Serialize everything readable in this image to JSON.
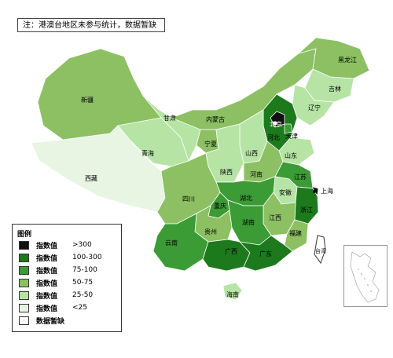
{
  "note": "注：港澳台地区未参与统计，数据暂缺",
  "legend": {
    "title": "图例",
    "items": [
      {
        "label": "指数值",
        "range": ">300",
        "color": "#111111"
      },
      {
        "label": "指数值",
        "range": "100-300",
        "color": "#1c7a1c"
      },
      {
        "label": "指数值",
        "range": "75-100",
        "color": "#3b9b35"
      },
      {
        "label": "指数值",
        "range": "50-75",
        "color": "#8cc063"
      },
      {
        "label": "指数值",
        "range": "25-50",
        "color": "#b5e4a5"
      },
      {
        "label": "指数值",
        "range": "<25",
        "color": "#e7f5e2"
      },
      {
        "label": "数据暂缺",
        "range": "",
        "color": "#ffffff"
      }
    ]
  },
  "provinces": {
    "xinjiang": {
      "name": "新疆",
      "color": "#8cc063"
    },
    "xizang": {
      "name": "西藏",
      "color": "#e7f5e2"
    },
    "qinghai": {
      "name": "青海",
      "color": "#b5e4a5"
    },
    "gansu": {
      "name": "甘肃",
      "color": "#b5e4a5"
    },
    "neimenggu": {
      "name": "内蒙古",
      "color": "#8cc063"
    },
    "heilongjiang": {
      "name": "黑龙江",
      "color": "#8cc063"
    },
    "jilin": {
      "name": "吉林",
      "color": "#b5e4a5"
    },
    "liaoning": {
      "name": "辽宁",
      "color": "#b5e4a5"
    },
    "beijing": {
      "name": "北京",
      "color": "#111111"
    },
    "tianjin": {
      "name": "天津",
      "color": "#3b9b35"
    },
    "hebei": {
      "name": "河北",
      "color": "#1c7a1c"
    },
    "shanxi": {
      "name": "山西",
      "color": "#b5e4a5"
    },
    "shandong": {
      "name": "山东",
      "color": "#b5e4a5"
    },
    "ningxia": {
      "name": "宁夏",
      "color": "#8cc063"
    },
    "shaanxi": {
      "name": "陕西",
      "color": "#b5e4a5"
    },
    "henan": {
      "name": "河南",
      "color": "#8cc063"
    },
    "jiangsu": {
      "name": "江苏",
      "color": "#3b9b35"
    },
    "shanghai": {
      "name": "上海",
      "color": "#111111"
    },
    "anhui": {
      "name": "安徽",
      "color": "#b5e4a5"
    },
    "hubei": {
      "name": "湖北",
      "color": "#3b9b35"
    },
    "sichuan": {
      "name": "四川",
      "color": "#8cc063"
    },
    "chongqing": {
      "name": "重庆",
      "color": "#3b9b35"
    },
    "zhejiang": {
      "name": "浙江",
      "color": "#1c7a1c"
    },
    "jiangxi": {
      "name": "江西",
      "color": "#8cc063"
    },
    "hunan": {
      "name": "湖南",
      "color": "#3b9b35"
    },
    "guizhou": {
      "name": "贵州",
      "color": "#8cc063"
    },
    "yunnan": {
      "name": "云南",
      "color": "#3b9b35"
    },
    "fujian": {
      "name": "福建",
      "color": "#8cc063"
    },
    "guangxi": {
      "name": "广西",
      "color": "#1c7a1c"
    },
    "guangdong": {
      "name": "广东",
      "color": "#1c7a1c"
    },
    "hainan": {
      "name": "海南",
      "color": "#b5e4a5"
    },
    "taiwan": {
      "name": "台湾",
      "color": "#ffffff"
    }
  },
  "map_colors": {
    "border": "#ffffff",
    "outline": "#333333"
  }
}
